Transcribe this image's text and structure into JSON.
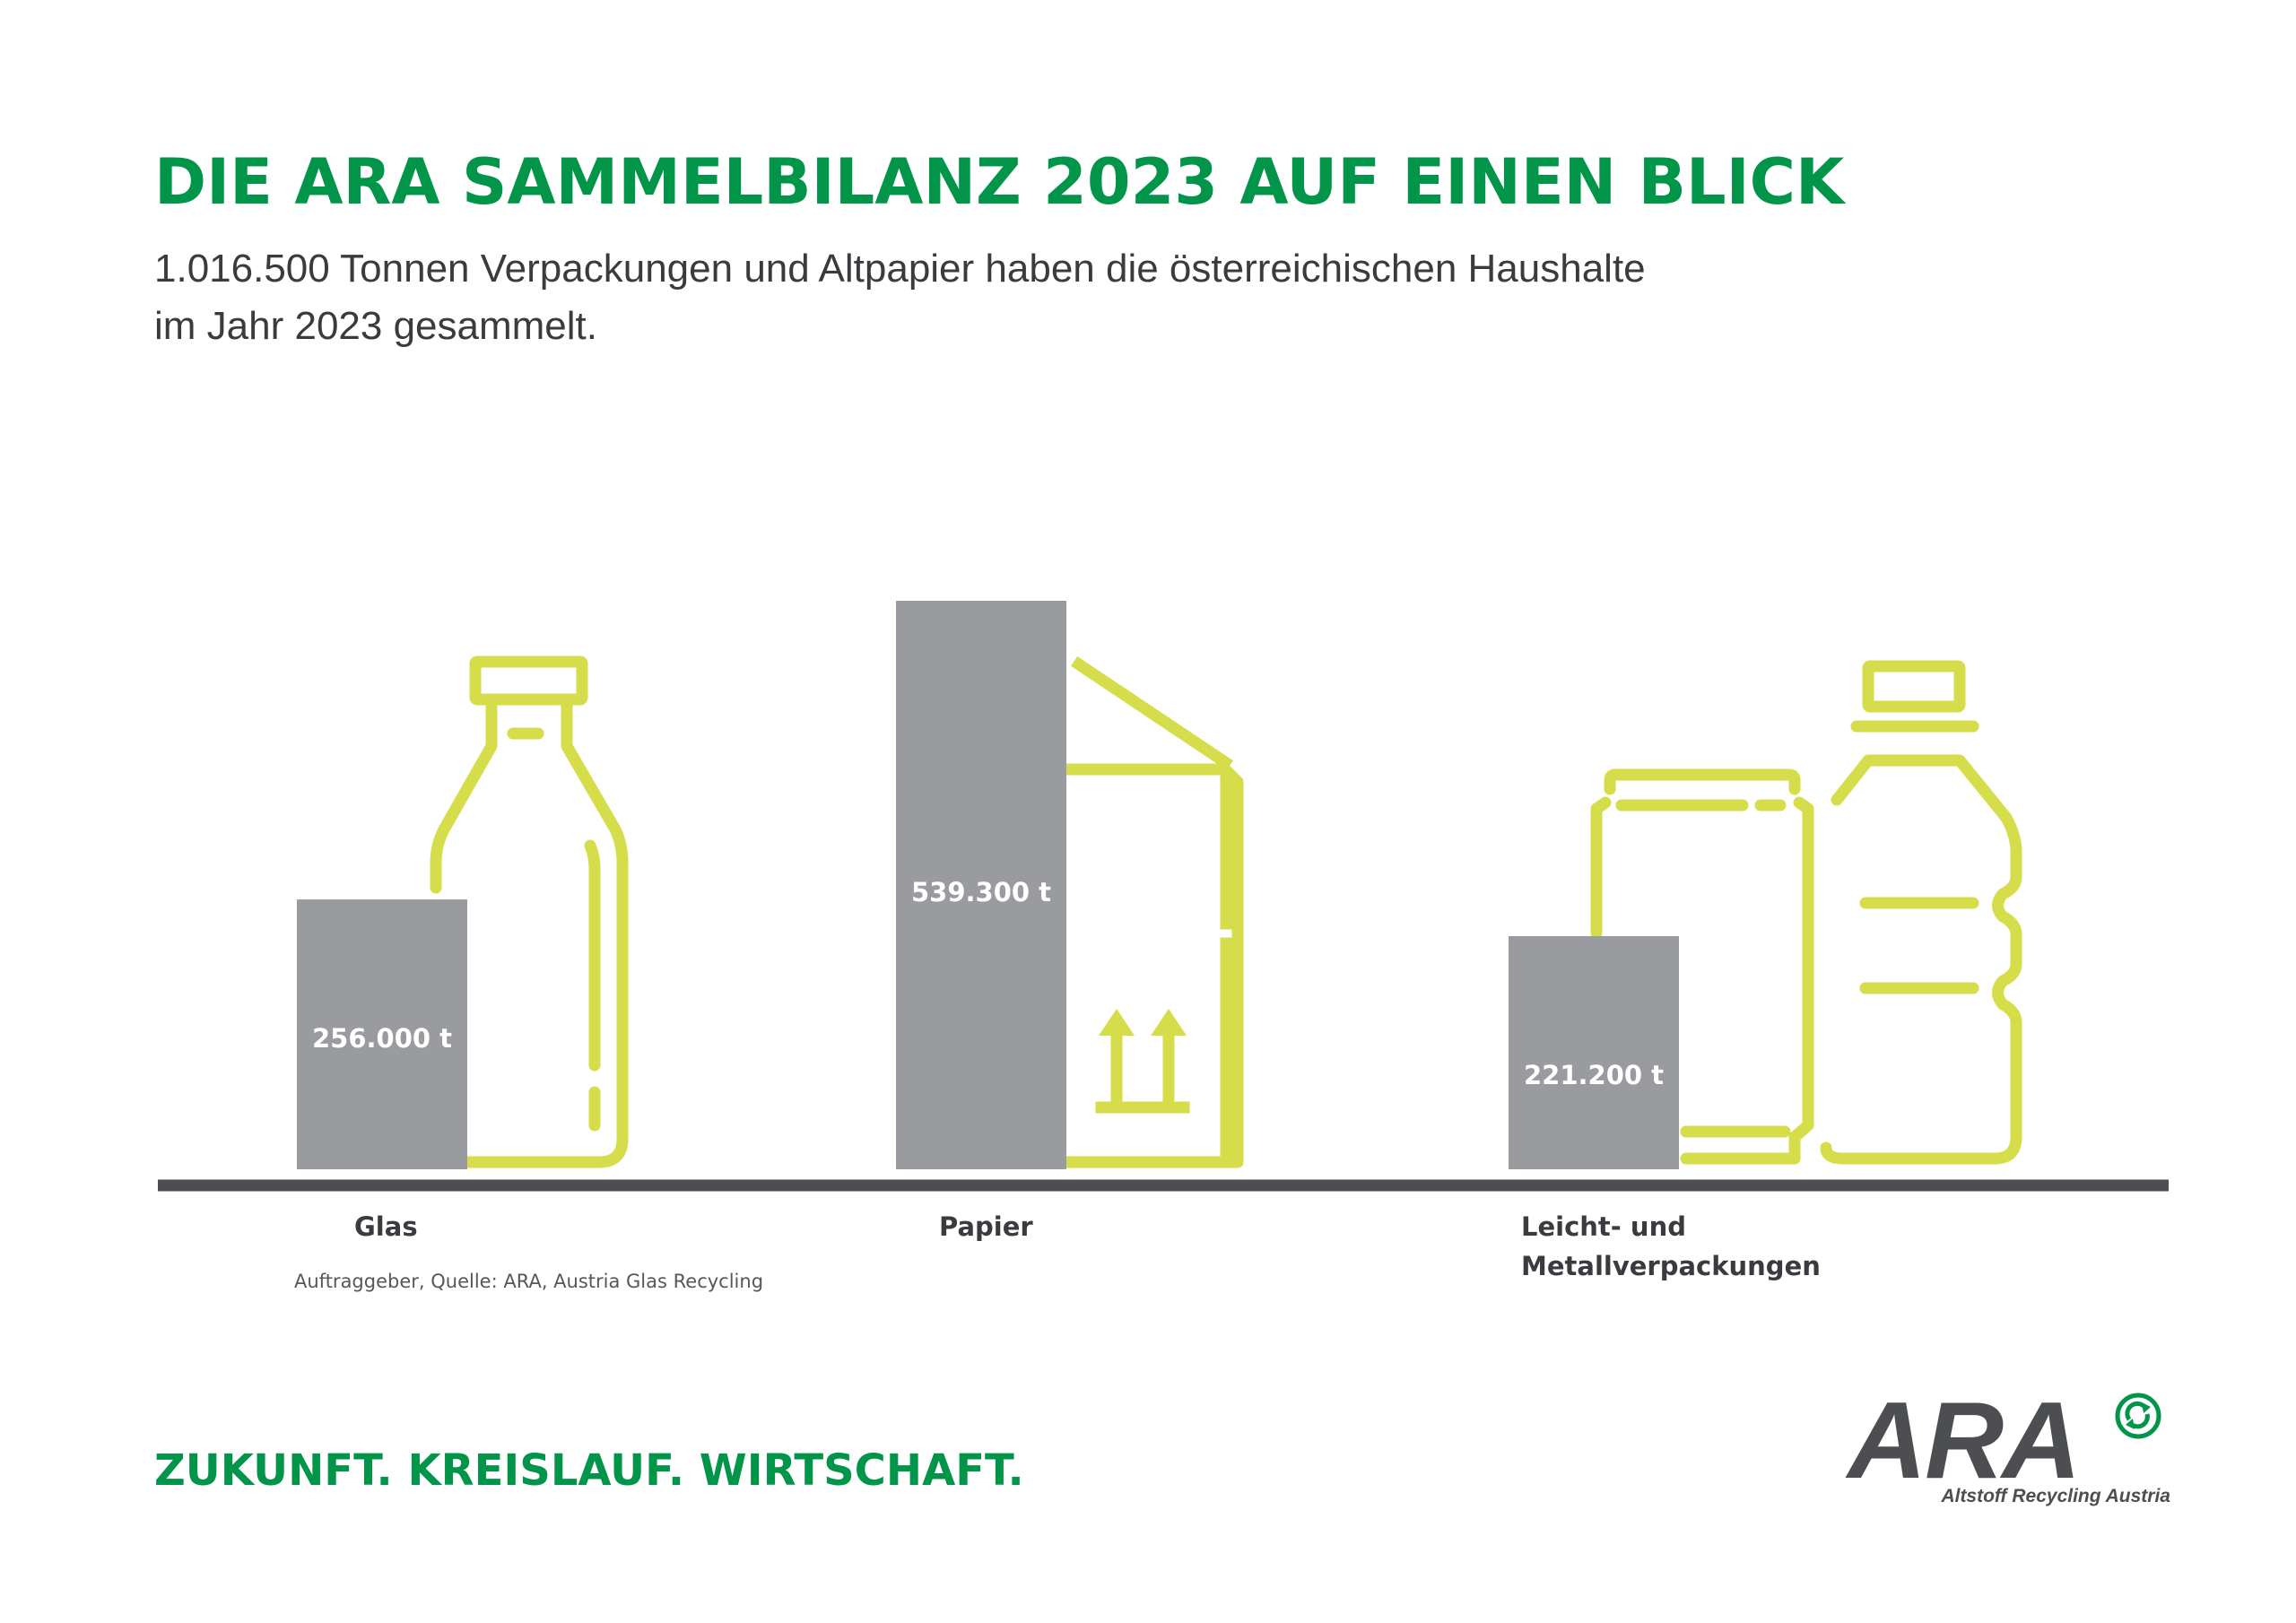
{
  "header": {
    "title": "DIE ARA SAMMELBILANZ 2023 AUF EINEN BLICK",
    "subtitle_line1": "1.016.500 Tonnen Verpackungen und Altpapier haben die österreichischen Haushalte",
    "subtitle_line2": "im Jahr 2023 gesammelt."
  },
  "chart_data": {
    "type": "bar",
    "title": "DIE ARA SAMMELBILANZ 2023 AUF EINEN BLICK",
    "categories": [
      "Glas",
      "Papier",
      "Leicht- und Metallverpackungen"
    ],
    "category_lines": [
      [
        "Glas"
      ],
      [
        "Papier"
      ],
      [
        "Leicht- und",
        "Metallverpackungen"
      ]
    ],
    "values": [
      256000,
      539300,
      221200
    ],
    "value_labels": [
      "256.000 t",
      "539.300 t",
      "221.200 t"
    ],
    "unit": "t",
    "ylim": [
      0,
      539300
    ],
    "grid": false,
    "legend": "none"
  },
  "source_note": "Auftraggeber, Quelle: ARA, Austria Glas Recycling",
  "footer": {
    "slogan": "ZUKUNFT. KREISLAUF. WIRTSCHAFT.",
    "logo_text": "ARA",
    "logo_subtitle": "Altstoff Recycling Austria"
  },
  "colors": {
    "title_green": "#009548",
    "bar_gray": "#999b9e",
    "icon_lime": "#d6dd4a",
    "baseline": "#4d4e51",
    "text_dark": "#3a3b3e"
  },
  "icons": [
    "milk-bottle-icon",
    "paper-carton-icon",
    "can-icon",
    "plastic-bottle-icon",
    "recycle-icon"
  ]
}
